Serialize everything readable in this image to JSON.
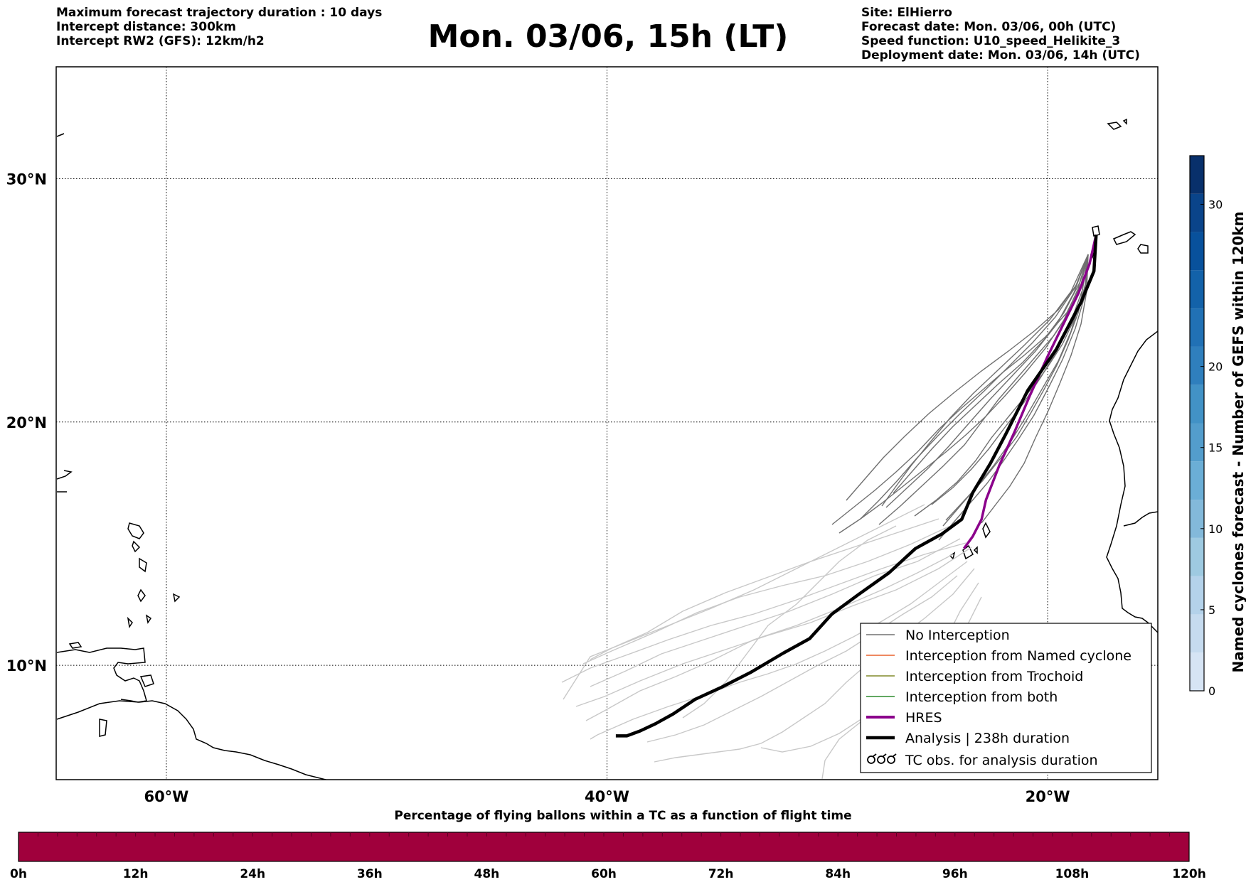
{
  "header": {
    "left_lines": [
      "Maximum forecast trajectory duration : 10 days",
      "Intercept distance: 300km",
      "Intercept RW2 (GFS):  12km/h2"
    ],
    "title": "Mon. 03/06, 15h (LT)",
    "right_lines": [
      "Site: ElHierro",
      "Forecast date: Mon. 03/06, 00h (UTC)",
      "Speed function: U10_speed_Helikite_3",
      "Deployment date: Mon. 03/06, 14h (UTC)"
    ]
  },
  "map": {
    "lon_range": [
      -65,
      -15
    ],
    "lat_range": [
      5.3,
      34.6
    ],
    "lat_gridlines": [
      {
        "value": 30,
        "label": "30°N"
      },
      {
        "value": 20,
        "label": "20°N"
      },
      {
        "value": 10,
        "label": "10°N"
      }
    ],
    "lon_gridlines": [
      {
        "value": -60,
        "label": "60°W"
      },
      {
        "value": -40,
        "label": "40°W"
      },
      {
        "value": -20,
        "label": "20°W"
      }
    ],
    "colors": {
      "no_interception": "#707070",
      "named_cyclone": "#e8602c",
      "trochoid": "#808a2a",
      "both": "#2e8b2e",
      "hres": "#8b008b",
      "analysis": "#000000",
      "light_traj": "#c8c8c8"
    },
    "hres_track": [
      [
        -17.8,
        27.7
      ],
      [
        -18.1,
        26.5
      ],
      [
        -18.6,
        25.3
      ],
      [
        -19.3,
        24.0
      ],
      [
        -20.0,
        22.7
      ],
      [
        -20.8,
        21.1
      ],
      [
        -21.5,
        19.6
      ],
      [
        -22.2,
        18.2
      ],
      [
        -22.8,
        16.8
      ],
      [
        -23.0,
        16.0
      ],
      [
        -23.4,
        15.3
      ],
      [
        -23.8,
        14.8
      ]
    ],
    "analysis_track": [
      [
        -17.8,
        27.7
      ],
      [
        -17.9,
        26.2
      ],
      [
        -18.5,
        24.9
      ],
      [
        -19.6,
        23.0
      ],
      [
        -20.9,
        21.3
      ],
      [
        -21.9,
        19.5
      ],
      [
        -22.6,
        18.3
      ],
      [
        -23.4,
        17.1
      ],
      [
        -23.9,
        16.0
      ],
      [
        -24.8,
        15.4
      ],
      [
        -26.0,
        14.8
      ],
      [
        -27.2,
        13.8
      ],
      [
        -28.6,
        12.9
      ],
      [
        -29.8,
        12.1
      ],
      [
        -30.8,
        11.1
      ],
      [
        -32.0,
        10.5
      ],
      [
        -33.5,
        9.7
      ],
      [
        -34.8,
        9.1
      ],
      [
        -36.0,
        8.6
      ],
      [
        -37.0,
        8.0
      ],
      [
        -37.8,
        7.6
      ],
      [
        -38.5,
        7.3
      ],
      [
        -39.1,
        7.1
      ],
      [
        -39.6,
        7.1
      ]
    ]
  },
  "legend": {
    "items": [
      {
        "label": "No Interception",
        "color": "#707070",
        "style": "thin"
      },
      {
        "label": "Interception from Named cyclone",
        "color": "#e8602c",
        "style": "thin"
      },
      {
        "label": "Interception from Trochoid",
        "color": "#808a2a",
        "style": "thin"
      },
      {
        "label": "Interception from both",
        "color": "#2e8b2e",
        "style": "thin"
      },
      {
        "label": "HRES",
        "color": "#8b008b",
        "style": "thick"
      },
      {
        "label": "Analysis | 238h duration",
        "color": "#000000",
        "style": "thick"
      },
      {
        "label": "TC obs. for analysis duration",
        "color": "#000000",
        "style": "symbol"
      }
    ]
  },
  "colorbar": {
    "label": "Named cyclones forecast - Number of GEFS within 120km",
    "ticks": [
      "0",
      "5",
      "10",
      "15",
      "20",
      "30"
    ],
    "range": [
      0,
      33
    ]
  },
  "bottom_bar": {
    "title": "Percentage of flying ballons within a TC as a function of flight time",
    "ticks": [
      "0h",
      "12h",
      "24h",
      "36h",
      "48h",
      "60h",
      "72h",
      "84h",
      "96h",
      "108h",
      "120h"
    ],
    "color": "#a0003c"
  }
}
